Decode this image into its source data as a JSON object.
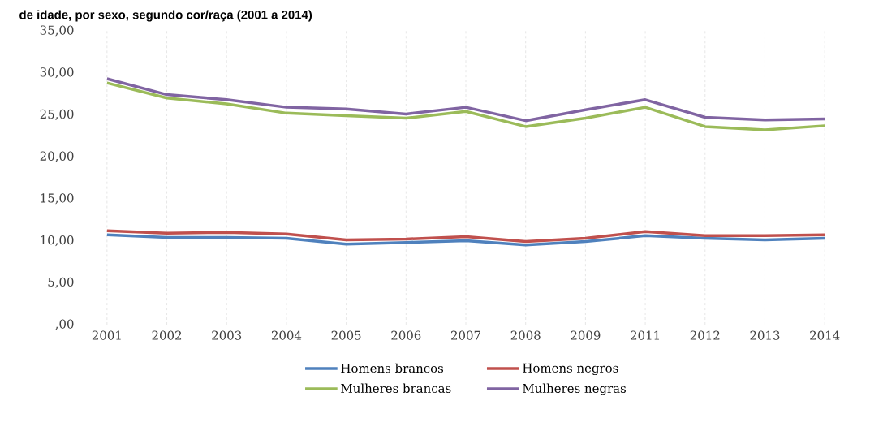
{
  "chart_data": {
    "type": "line",
    "title": "de idade, por sexo, segundo cor/raça (2001 a 2014)",
    "categories": [
      "2001",
      "2002",
      "2003",
      "2004",
      "2005",
      "2006",
      "2007",
      "2008",
      "2009",
      "2011",
      "2012",
      "2013",
      "2014"
    ],
    "series": [
      {
        "name": "Homens brancos",
        "color": "#4f81bd",
        "values": [
          10.7,
          10.4,
          10.4,
          10.3,
          9.6,
          9.8,
          10.0,
          9.5,
          9.9,
          10.6,
          10.3,
          10.1,
          10.3
        ]
      },
      {
        "name": "Homens negros",
        "color": "#c0504d",
        "values": [
          11.2,
          10.9,
          11.0,
          10.8,
          10.1,
          10.2,
          10.5,
          9.9,
          10.3,
          11.1,
          10.6,
          10.6,
          10.7
        ]
      },
      {
        "name": "Mulheres brancas",
        "color": "#9bbb59",
        "values": [
          28.8,
          27.0,
          26.3,
          25.2,
          24.9,
          24.6,
          25.4,
          23.6,
          24.6,
          25.9,
          23.6,
          23.2,
          23.7
        ]
      },
      {
        "name": "Mulheres negras",
        "color": "#8064a2",
        "values": [
          29.3,
          27.4,
          26.8,
          25.9,
          25.7,
          25.1,
          25.9,
          24.3,
          25.6,
          26.8,
          24.7,
          24.4,
          24.5
        ]
      }
    ],
    "ylim": [
      0,
      35
    ],
    "yticks": [
      {
        "value": 0,
        "label": ",00"
      },
      {
        "value": 5,
        "label": "5,00"
      },
      {
        "value": 10,
        "label": "10,00"
      },
      {
        "value": 15,
        "label": "15,00"
      },
      {
        "value": 20,
        "label": "20,00"
      },
      {
        "value": 25,
        "label": "25,00"
      },
      {
        "value": 30,
        "label": "30,00"
      },
      {
        "value": 35,
        "label": "35,00"
      }
    ],
    "grid": "x",
    "legend": "bottom",
    "marker": "none",
    "line_style": "solid"
  }
}
